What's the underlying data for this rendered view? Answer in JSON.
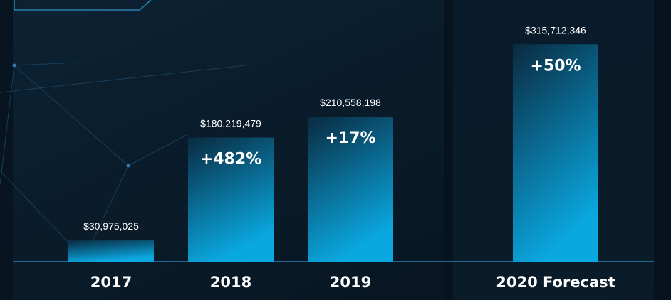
{
  "chart_data": {
    "type": "bar",
    "categories": [
      "2017",
      "2018",
      "2019",
      "2020 Forecast"
    ],
    "values": [
      30975025,
      180219479,
      210558198,
      315712346
    ],
    "value_labels": [
      "$30,975,025",
      "$180,219,479",
      "$210,558,198",
      "$315,712,346"
    ],
    "change_labels": [
      "",
      "+482%",
      "+17%",
      "+50%"
    ],
    "forecast_index": 3,
    "title": "",
    "xlabel": "",
    "ylabel": "",
    "ylim": [
      0,
      380000000
    ],
    "grid": false,
    "legend": "none",
    "colors": {
      "background": "#0a1826",
      "background_panel": "#0c1e2e",
      "bar_top": "#0a2a40",
      "bar_bottom": "#0aa8e0",
      "baseline": "#2b7fb0",
      "text": "#ffffff"
    }
  },
  "header_badge_text": "… …"
}
